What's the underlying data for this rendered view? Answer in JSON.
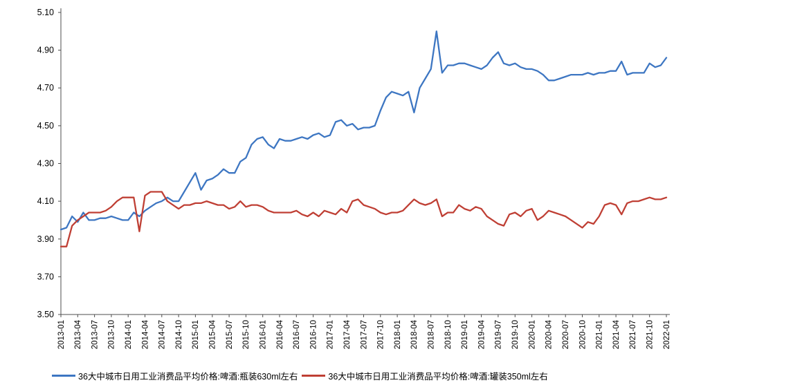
{
  "chart_data": {
    "type": "line",
    "title": "",
    "xlabel": "",
    "ylabel": "",
    "ylim": [
      3.5,
      5.1
    ],
    "yticks": [
      "3.50",
      "3.70",
      "3.90",
      "4.10",
      "4.30",
      "4.50",
      "4.70",
      "4.90",
      "5.10"
    ],
    "grid": false,
    "legend_position": "bottom",
    "x_label_every": 3,
    "x": [
      "2013-01",
      "2013-02",
      "2013-03",
      "2013-04",
      "2013-05",
      "2013-06",
      "2013-07",
      "2013-08",
      "2013-09",
      "2013-10",
      "2013-11",
      "2013-12",
      "2014-01",
      "2014-02",
      "2014-03",
      "2014-04",
      "2014-05",
      "2014-06",
      "2014-07",
      "2014-08",
      "2014-09",
      "2014-10",
      "2014-11",
      "2014-12",
      "2015-01",
      "2015-02",
      "2015-03",
      "2015-04",
      "2015-05",
      "2015-06",
      "2015-07",
      "2015-08",
      "2015-09",
      "2015-10",
      "2015-11",
      "2015-12",
      "2016-01",
      "2016-02",
      "2016-03",
      "2016-04",
      "2016-05",
      "2016-06",
      "2016-07",
      "2016-08",
      "2016-09",
      "2016-10",
      "2016-11",
      "2016-12",
      "2017-01",
      "2017-02",
      "2017-03",
      "2017-04",
      "2017-05",
      "2017-06",
      "2017-07",
      "2017-08",
      "2017-09",
      "2017-10",
      "2017-11",
      "2017-12",
      "2018-01",
      "2018-02",
      "2018-03",
      "2018-04",
      "2018-05",
      "2018-06",
      "2018-07",
      "2018-08",
      "2018-09",
      "2018-10",
      "2018-11",
      "2018-12",
      "2019-01",
      "2019-02",
      "2019-03",
      "2019-04",
      "2019-05",
      "2019-06",
      "2019-07",
      "2019-08",
      "2019-09",
      "2019-10",
      "2019-11",
      "2019-12",
      "2020-01",
      "2020-02",
      "2020-03",
      "2020-04",
      "2020-05",
      "2020-06",
      "2020-07",
      "2020-08",
      "2020-09",
      "2020-10",
      "2020-11",
      "2020-12",
      "2021-01",
      "2021-02",
      "2021-03",
      "2021-04",
      "2021-05",
      "2021-06",
      "2021-07",
      "2021-08",
      "2021-09",
      "2021-10",
      "2021-11",
      "2021-12",
      "2022-01"
    ],
    "series": [
      {
        "name": "36大中城市日用工业消费品平均价格:啤酒:瓶装630ml左右",
        "color": "#3D76C2",
        "values": [
          3.95,
          3.96,
          4.02,
          3.99,
          4.04,
          4.0,
          4.0,
          4.01,
          4.01,
          4.02,
          4.01,
          4.0,
          4.0,
          4.04,
          4.02,
          4.05,
          4.07,
          4.09,
          4.1,
          4.12,
          4.1,
          4.1,
          4.15,
          4.2,
          4.25,
          4.16,
          4.21,
          4.22,
          4.24,
          4.27,
          4.25,
          4.25,
          4.31,
          4.33,
          4.4,
          4.43,
          4.44,
          4.4,
          4.38,
          4.43,
          4.42,
          4.42,
          4.43,
          4.44,
          4.43,
          4.45,
          4.46,
          4.44,
          4.45,
          4.52,
          4.53,
          4.5,
          4.51,
          4.48,
          4.49,
          4.49,
          4.5,
          4.58,
          4.65,
          4.68,
          4.67,
          4.66,
          4.68,
          4.57,
          4.7,
          4.75,
          4.8,
          5.0,
          4.78,
          4.82,
          4.82,
          4.83,
          4.83,
          4.82,
          4.81,
          4.8,
          4.82,
          4.86,
          4.89,
          4.83,
          4.82,
          4.83,
          4.81,
          4.8,
          4.8,
          4.79,
          4.77,
          4.74,
          4.74,
          4.75,
          4.76,
          4.77,
          4.77,
          4.77,
          4.78,
          4.77,
          4.78,
          4.78,
          4.79,
          4.79,
          4.84,
          4.77,
          4.78,
          4.78,
          4.78,
          4.83,
          4.81,
          4.82,
          4.86
        ]
      },
      {
        "name": "36大中城市日用工业消费品平均价格:啤酒:罐装350ml左右",
        "color": "#BF3F34",
        "values": [
          3.86,
          3.86,
          3.97,
          4.0,
          4.02,
          4.04,
          4.04,
          4.04,
          4.05,
          4.07,
          4.1,
          4.12,
          4.12,
          4.12,
          3.94,
          4.13,
          4.15,
          4.15,
          4.15,
          4.1,
          4.08,
          4.06,
          4.08,
          4.08,
          4.09,
          4.09,
          4.1,
          4.09,
          4.08,
          4.08,
          4.06,
          4.07,
          4.1,
          4.07,
          4.08,
          4.08,
          4.07,
          4.05,
          4.04,
          4.04,
          4.04,
          4.04,
          4.05,
          4.03,
          4.02,
          4.04,
          4.02,
          4.05,
          4.04,
          4.03,
          4.06,
          4.04,
          4.1,
          4.11,
          4.08,
          4.07,
          4.06,
          4.04,
          4.03,
          4.04,
          4.04,
          4.05,
          4.08,
          4.11,
          4.09,
          4.08,
          4.09,
          4.11,
          4.02,
          4.04,
          4.04,
          4.08,
          4.06,
          4.05,
          4.07,
          4.06,
          4.02,
          4.0,
          3.98,
          3.97,
          4.03,
          4.04,
          4.02,
          4.05,
          4.06,
          4.0,
          4.02,
          4.05,
          4.04,
          4.03,
          4.02,
          4.0,
          3.98,
          3.96,
          3.99,
          3.98,
          4.02,
          4.08,
          4.09,
          4.08,
          4.03,
          4.09,
          4.1,
          4.1,
          4.11,
          4.12,
          4.11,
          4.11,
          4.12
        ]
      }
    ]
  }
}
